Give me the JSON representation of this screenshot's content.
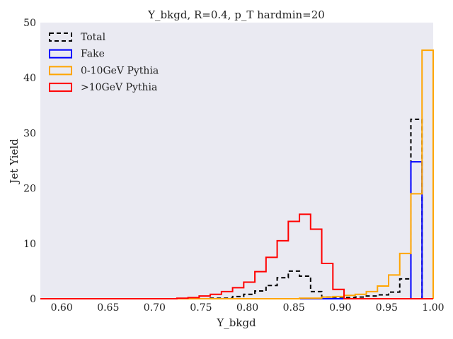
{
  "chart_data": {
    "type": "histogram-step",
    "title": "Y_bkgd, R=0.4, p_T hardmin=20",
    "xlabel": "Y_bkgd",
    "ylabel": "Jet Yield",
    "xlim": [
      0.577,
      1.0
    ],
    "ylim": [
      0,
      50
    ],
    "xticks": [
      "0.60",
      "0.65",
      "0.70",
      "0.75",
      "0.80",
      "0.85",
      "0.90",
      "0.95",
      "1.00"
    ],
    "yticks": [
      "0",
      "10",
      "20",
      "30",
      "40",
      "50"
    ],
    "bin_width": 0.012,
    "bin_end": 1.0,
    "legend_position": "top-left",
    "background": "#eaeaf2",
    "series": [
      {
        "name": "Total",
        "color": "#000000",
        "dashed": true,
        "values": [
          0,
          0,
          0,
          0,
          0,
          0,
          0,
          0,
          0,
          0,
          0,
          0.1,
          0.1,
          0.4,
          0.8,
          1.4,
          2.4,
          3.8,
          5,
          4.1,
          1.3,
          0.3,
          0.1,
          0.2,
          0.3,
          0.5,
          0.7,
          1.2,
          3.6,
          32.5,
          0
        ]
      },
      {
        "name": "Fake",
        "color": "#0000ff",
        "dashed": false,
        "values": [
          0,
          0,
          0,
          0,
          0,
          0,
          0,
          0,
          0,
          0,
          0,
          0,
          0,
          0,
          0,
          0,
          0,
          0,
          0,
          0,
          0,
          0,
          0,
          0,
          0,
          0,
          0,
          0,
          0,
          24.8,
          0
        ]
      },
      {
        "name": "0-10GeV Pythia",
        "color": "#ffa500",
        "dashed": false,
        "values": [
          0,
          0,
          0,
          0,
          0,
          0,
          0,
          0,
          0,
          0,
          0,
          0,
          0,
          0,
          0,
          0,
          0,
          0,
          0,
          0.1,
          0.1,
          0.3,
          0.4,
          0.6,
          0.8,
          1.3,
          2.3,
          4.3,
          8.2,
          19,
          45
        ]
      },
      {
        "name": ">10GeV Pythia",
        "color": "#ff0000",
        "dashed": false,
        "values": [
          0,
          0,
          0,
          0,
          0,
          0,
          0,
          0,
          0.1,
          0.2,
          0.5,
          0.8,
          1.3,
          2,
          3,
          4.9,
          7.5,
          10.5,
          14,
          15.3,
          12.6,
          6.4,
          1.7,
          0,
          0,
          0,
          0,
          0,
          0,
          0,
          0
        ]
      }
    ]
  }
}
